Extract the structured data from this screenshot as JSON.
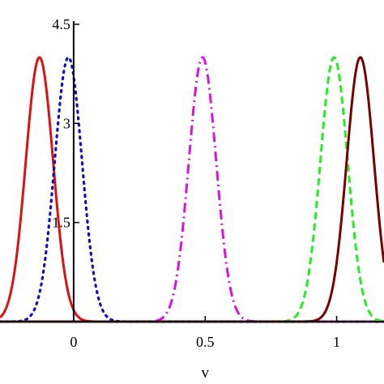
{
  "chart_data": {
    "type": "line",
    "xlabel": "v",
    "ylabel": "",
    "xlim": [
      -0.28,
      1.18
    ],
    "ylim": [
      0,
      4.5
    ],
    "x_ticks": [
      0,
      0.5,
      1
    ],
    "x_tick_labels": [
      "0",
      "0.5",
      "1"
    ],
    "y_ticks": [
      1.5,
      3,
      4.5
    ],
    "y_tick_labels": [
      "1.5",
      "3",
      "4.5"
    ],
    "grid": false,
    "series": [
      {
        "center": -0.13,
        "peak": 4.0,
        "sigma": 0.052,
        "color": "#dd1111",
        "style": "solid"
      },
      {
        "center": -0.02,
        "peak": 4.0,
        "sigma": 0.052,
        "color": "#1111bb",
        "style": "dotted"
      },
      {
        "center": 0.49,
        "peak": 4.0,
        "sigma": 0.052,
        "color": "#dd11dd",
        "style": "dashdot"
      },
      {
        "center": 0.99,
        "peak": 4.0,
        "sigma": 0.052,
        "color": "#22ee22",
        "style": "dashed"
      },
      {
        "center": 1.09,
        "peak": 4.0,
        "sigma": 0.052,
        "color": "#7a0000",
        "style": "solid"
      }
    ]
  }
}
